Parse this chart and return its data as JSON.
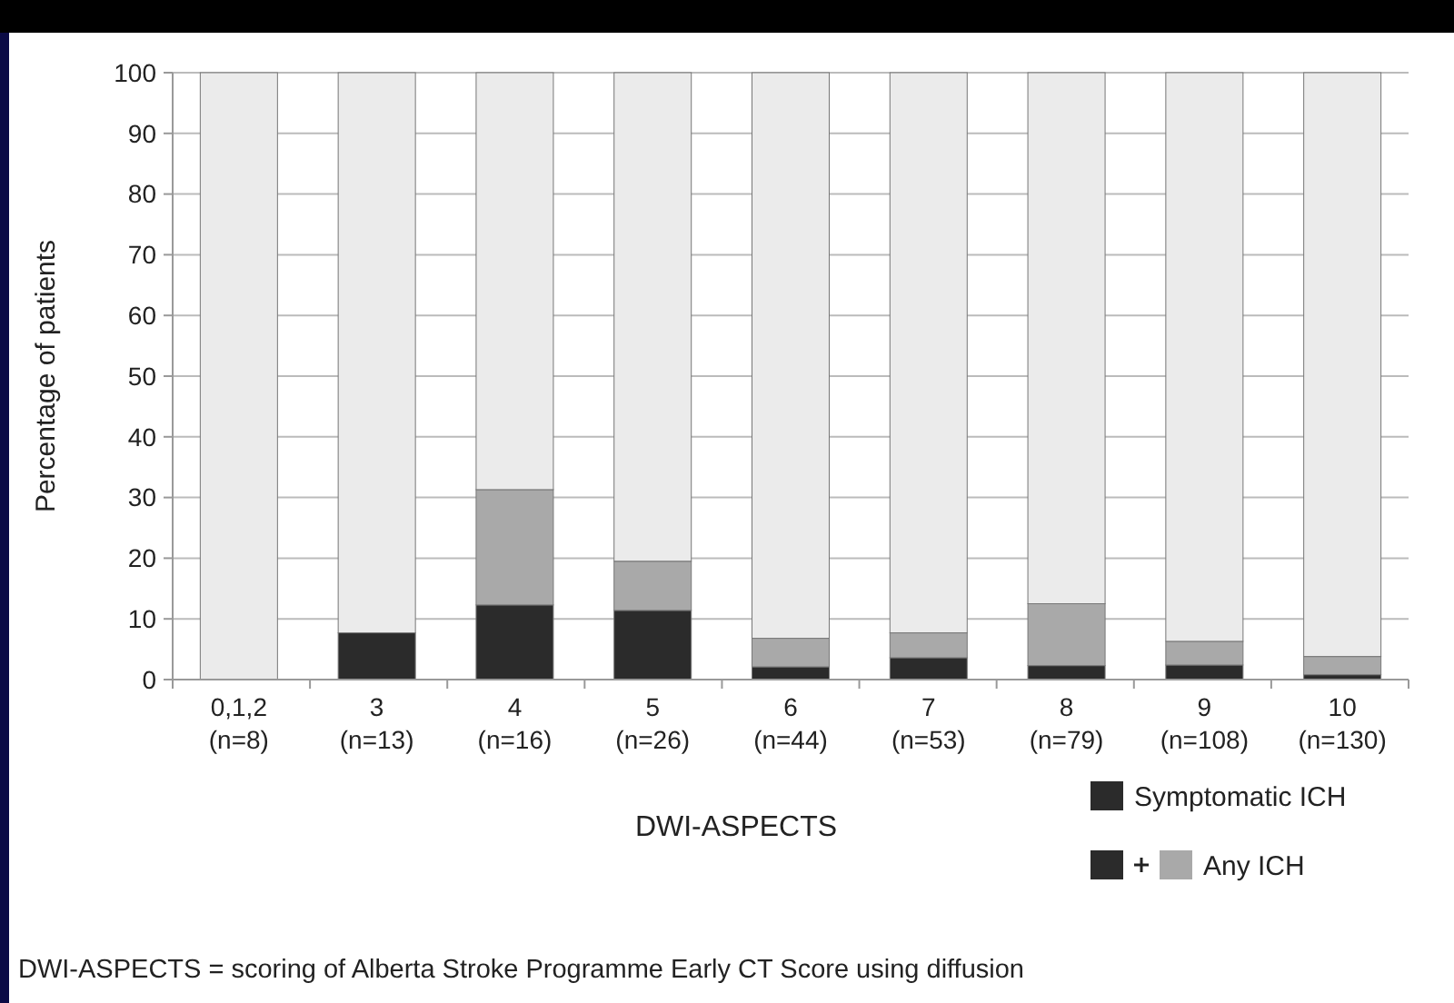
{
  "chart_data": {
    "type": "bar",
    "stacked": true,
    "xlabel": "DWI-ASPECTS",
    "ylabel": "Percentage of patients",
    "categories": [
      "0,1,2\n(n=8)",
      "3\n(n=13)",
      "4\n(n=16)",
      "5\n(n=26)",
      "6\n(n=44)",
      "7\n(n=53)",
      "8\n(n=79)",
      "9\n(n=108)",
      "10\n(n=130)"
    ],
    "series": [
      {
        "name": "Symptomatic ICH",
        "color": "#2b2b2b",
        "values": [
          0,
          7.7,
          12.3,
          11.4,
          2.1,
          3.6,
          2.3,
          2.4,
          0.8
        ]
      },
      {
        "name": "Any ICH",
        "color": "#a9a9a9",
        "values": [
          0,
          0,
          19,
          8.1,
          4.7,
          4.1,
          10.2,
          3.9,
          3
        ]
      },
      {
        "color": "#ebebeb",
        "values": [
          100,
          92.3,
          68.7,
          80.5,
          93.2,
          92.3,
          87.5,
          93.7,
          96.2
        ]
      }
    ],
    "ylim": [
      0,
      100
    ],
    "yticks": [
      0,
      10,
      20,
      30,
      40,
      50,
      60,
      70,
      80,
      90,
      100
    ],
    "grid": "y",
    "legend": "bottom right",
    "annotations": [
      "DWI-ASPECTS = scoring of Alberta Stroke Programme Early CT Score using diffusion"
    ]
  }
}
